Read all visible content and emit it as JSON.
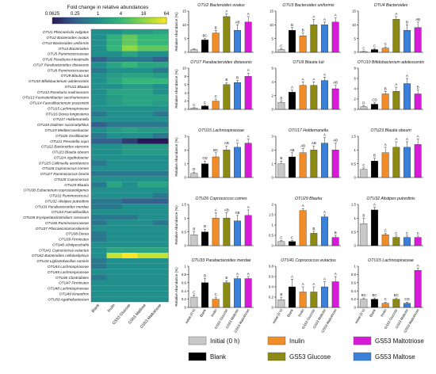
{
  "heatmap": {
    "title": "Fold change in relative abundances",
    "scale_ticks": [
      "0.0625",
      "0.25",
      "1",
      "4",
      "16",
      "64"
    ],
    "scale_colors": [
      "#2a1856",
      "#33608d",
      "#21908c",
      "#35b779",
      "#8fd744",
      "#fde725"
    ],
    "columns": [
      "Blank",
      "Inulin",
      "GS53 Glucose",
      "GS53 Maltose",
      "GS53 Maltotriose"
    ],
    "rows": [
      "OTU1 Phocaeicola vulgatus",
      "OTU2 Bacteroides ovatus",
      "OTU3 Bacteroides uniformis",
      "OTU4 Bacteroides",
      "OTU5 Ruminococcaceae",
      "OTU6 Roseburia intestinalis",
      "OTU7 Parabacteroides distasonis",
      "OTU8 Ruminococcaceae",
      "OTU9 Blautia luti",
      "OTU10 Bifidobacterium adolescentis",
      "OTU11 Blautia",
      "OTU12 Roseburia inulinivorans",
      "OTU13 Fusicatenibacter saccharivorans",
      "OTU14 Faecalibacterium prausnitzii",
      "OTU15 Lachnospiraceae",
      "OTU16 Dorea longicatena",
      "OTU17 Holdemanella",
      "OTU18 Dialister succinatiphilus",
      "OTU19 Mediterraneibacter",
      "OTU20 Oscillibacter",
      "OTU21 Prevotella copri",
      "OTU22 Bacteroides stercoris",
      "OTU23 Blautia obeum",
      "OTU24 Agathobacter",
      "OTU25 Collinsella aerofaciens",
      "OTU26 Coprococcus comes",
      "OTU27 Ruminococcus bromii",
      "OTU28 Coprococcus",
      "OTU29 Blautia",
      "OTU30 Eubacterium coprostanoligenes",
      "OTU31 Ruminococcus2",
      "OTU32 Alistipes putredinis",
      "OTU33 Parabacteroides merdae",
      "OTU34 Faecalibacillus",
      "OTU35 Erysipelatoclostridium ramosum",
      "OTU36 Ruminococcaceae",
      "OTU37 Phocaeicolamassiliensis",
      "OTU38 Dorea",
      "OTU39 Firmicutes",
      "OTU40 Alistipesshahii",
      "OTU41 Coprococcus eutactus",
      "OTU42 Bacteroides cellulosilyticus",
      "OTU43 Ligilactobacillus ruminis",
      "OTU44 Lachnospiraceae",
      "OTU45 Lachnospiraceae",
      "OTU46 Clostridiales",
      "OTU47 Firmicutes",
      "OTU48 Lachnospiraceae",
      "OTU49 Kineothrix",
      "OTU50 Agathobacterium"
    ],
    "values": [
      [
        1,
        1,
        1.5,
        1.5,
        2
      ],
      [
        1,
        3,
        8,
        4,
        4
      ],
      [
        1,
        3,
        8,
        4,
        4
      ],
      [
        1,
        4,
        16,
        8,
        8
      ],
      [
        1,
        1,
        2,
        1,
        1
      ],
      [
        0.25,
        0.5,
        0.5,
        0.5,
        0.25
      ],
      [
        1,
        2,
        4,
        2,
        2
      ],
      [
        0.5,
        1,
        1,
        1,
        0.5
      ],
      [
        1,
        1.5,
        2,
        2,
        1.5
      ],
      [
        1,
        2,
        4,
        4,
        4
      ],
      [
        1,
        1,
        1.5,
        1.5,
        1
      ],
      [
        1,
        2,
        2,
        2,
        1
      ],
      [
        1,
        1.5,
        2,
        2,
        2
      ],
      [
        1,
        1.5,
        2,
        2,
        1.5
      ],
      [
        1,
        1,
        1,
        1,
        1
      ],
      [
        0.5,
        1,
        1,
        1,
        0.5
      ],
      [
        1,
        1,
        1,
        1,
        1
      ],
      [
        0.25,
        0.5,
        0.5,
        0.5,
        0.5
      ],
      [
        1,
        1.5,
        2,
        1.5,
        1.5
      ],
      [
        0.5,
        1,
        1,
        1,
        0.5
      ],
      [
        0.25,
        0.25,
        0.125,
        0.0625,
        0.0625
      ],
      [
        1,
        1,
        1.5,
        1.5,
        1.5
      ],
      [
        1,
        1,
        1.5,
        1.5,
        1.5
      ],
      [
        1,
        1,
        1,
        1,
        1
      ],
      [
        0.5,
        1,
        1,
        1,
        1
      ],
      [
        1,
        1,
        1,
        1,
        1
      ],
      [
        0.5,
        0.5,
        0.5,
        0.5,
        0.5
      ],
      [
        1,
        1,
        1,
        1,
        1
      ],
      [
        0.5,
        2,
        1,
        2,
        2
      ],
      [
        1,
        1,
        1,
        1,
        1
      ],
      [
        1,
        1,
        1,
        1,
        0.5
      ],
      [
        0.5,
        0.5,
        0.25,
        0.25,
        0.25
      ],
      [
        0.5,
        0.5,
        1,
        1,
        1
      ],
      [
        1,
        1,
        1,
        1,
        1
      ],
      [
        0.5,
        0.5,
        0.5,
        1,
        1
      ],
      [
        0.5,
        1,
        1,
        1,
        0.5
      ],
      [
        1,
        1,
        1,
        1,
        1
      ],
      [
        0.5,
        1,
        1,
        1,
        1
      ],
      [
        0.5,
        1,
        1,
        1,
        1
      ],
      [
        1,
        1,
        1,
        1,
        1
      ],
      [
        1,
        2,
        2,
        2,
        2
      ],
      [
        1,
        32,
        64,
        32,
        32
      ],
      [
        0.5,
        1,
        1,
        1,
        1
      ],
      [
        0.5,
        1,
        1,
        1,
        1
      ],
      [
        1,
        1,
        1,
        1,
        1
      ],
      [
        0.5,
        1,
        1,
        1,
        1
      ],
      [
        1,
        1,
        1,
        1,
        1
      ],
      [
        1,
        1,
        1,
        1,
        1
      ],
      [
        1,
        1,
        1,
        1,
        1
      ],
      [
        1,
        1,
        1,
        1,
        1
      ]
    ]
  },
  "chart_data": [
    {
      "type": "bar",
      "title": "OTU2 Bacteroides ovatus",
      "ylabel": "Relative Abundance (%)",
      "ylim": [
        0,
        15
      ],
      "yticks": [
        0,
        5,
        10,
        15
      ],
      "categories": [
        "Initial (0 h)",
        "Blank",
        "Inulin",
        "GS53 Glucose",
        "GS53 Maltose",
        "GS53 Maltotriose"
      ],
      "values": [
        1,
        4.5,
        7,
        13,
        8,
        11
      ],
      "errors": [
        0.3,
        0.5,
        1,
        1,
        2,
        2
      ],
      "labels": [
        "",
        "BC",
        "B",
        "A",
        "AB",
        "A"
      ]
    },
    {
      "type": "bar",
      "title": "OTU3 Bacteroides uniformis",
      "ylabel": "",
      "ylim": [
        0,
        15
      ],
      "yticks": [
        0,
        5,
        10,
        15
      ],
      "categories": [
        "Initial (0 h)",
        "Blank",
        "Inulin",
        "GS53 Glucose",
        "GS53 Maltose",
        "GS53 Maltotriose"
      ],
      "values": [
        1,
        8,
        6,
        10,
        10,
        11
      ],
      "errors": [
        0.3,
        1,
        1,
        2,
        1,
        1.5
      ],
      "labels": [
        "C",
        "B",
        "B",
        "A",
        "A",
        "A"
      ]
    },
    {
      "type": "bar",
      "title": "OTU4 Bacteroides",
      "ylabel": "",
      "ylim": [
        0,
        15
      ],
      "yticks": [
        0,
        5,
        10,
        15
      ],
      "categories": [
        "Initial (0 h)",
        "Blank",
        "Inulin",
        "GS53 Glucose",
        "GS53 Maltose",
        "GS53 Maltotriose"
      ],
      "values": [
        0.3,
        1,
        1.5,
        12,
        8,
        9
      ],
      "errors": [
        0.1,
        0.3,
        0.5,
        1,
        2,
        2
      ],
      "labels": [
        "C",
        "C",
        "C",
        "A",
        "B",
        "AB"
      ]
    },
    {
      "type": "bar",
      "title": "OTU7 Parabacteroides distasonis",
      "ylabel": "Relative Abundance (%)",
      "ylim": [
        0,
        10
      ],
      "yticks": [
        0,
        2,
        4,
        6,
        8,
        10
      ],
      "categories": [
        "Initial (0 h)",
        "Blank",
        "Inulin",
        "GS53 Glucose",
        "GS53 Maltose",
        "GS53 Maltotriose"
      ],
      "values": [
        0.3,
        0.8,
        2,
        6,
        6.5,
        8
      ],
      "errors": [
        0.1,
        0.2,
        0.5,
        0.5,
        0.5,
        0.8
      ],
      "labels": [
        "C",
        "C",
        "C",
        "B",
        "B",
        "A"
      ]
    },
    {
      "type": "bar",
      "title": "OTU9 Blautia luti",
      "ylabel": "",
      "ylim": [
        0,
        6
      ],
      "yticks": [
        0,
        2,
        4,
        6
      ],
      "categories": [
        "Initial (0 h)",
        "Blank",
        "Inulin",
        "GS53 Glucose",
        "GS53 Maltose",
        "GS53 Maltotriose"
      ],
      "values": [
        1,
        2.5,
        3.5,
        3.5,
        4.2,
        3
      ],
      "errors": [
        0.2,
        0.3,
        0.5,
        0.5,
        0.5,
        0.5
      ],
      "labels": [
        "B",
        "A",
        "A",
        "A",
        "A",
        "AB"
      ]
    },
    {
      "type": "bar",
      "title": "OTU10 Bifidobacterium adolescentis",
      "ylabel": "",
      "ylim": [
        0,
        8
      ],
      "yticks": [
        0,
        2,
        4,
        6,
        8
      ],
      "categories": [
        "Initial (0 h)",
        "Blank",
        "Inulin",
        "GS53 Glucose",
        "GS53 Maltose",
        "GS53 Maltotriose"
      ],
      "values": [
        0.5,
        1,
        3,
        3.5,
        5,
        3
      ],
      "errors": [
        0.2,
        0.3,
        0.5,
        0.8,
        1,
        0.8
      ],
      "labels": [
        "D",
        "CD",
        "B",
        "A",
        "A",
        "B"
      ]
    },
    {
      "type": "bar",
      "title": "OTU15 Lachnospiraceae",
      "ylabel": "Relative Abundance (%)",
      "ylim": [
        0,
        3
      ],
      "yticks": [
        0,
        1,
        2,
        3
      ],
      "categories": [
        "Initial (0 h)",
        "Blank",
        "Inulin",
        "GS53 Glucose",
        "GS53 Maltose",
        "GS53 Maltotriose"
      ],
      "values": [
        0.3,
        1,
        1.5,
        2,
        2.2,
        2.5
      ],
      "errors": [
        0.1,
        0.2,
        0.3,
        0.3,
        0.3,
        0.3
      ],
      "labels": [
        "D",
        "CD",
        "BC",
        "AB",
        "A",
        "A"
      ]
    },
    {
      "type": "bar",
      "title": "OTU17 Holdemanella",
      "ylabel": "",
      "ylim": [
        0,
        3
      ],
      "yticks": [
        0,
        1,
        2,
        3
      ],
      "categories": [
        "Initial (0 h)",
        "Blank",
        "Inulin",
        "GS53 Glucose",
        "GS53 Maltose",
        "GS53 Maltotriose"
      ],
      "values": [
        1,
        1.5,
        1.8,
        2,
        2.5,
        2
      ],
      "errors": [
        0.2,
        0.3,
        0.3,
        0.3,
        0.4,
        0.5
      ],
      "labels": [
        "B",
        "AB",
        "AB",
        "AB",
        "A",
        "AB"
      ]
    },
    {
      "type": "bar",
      "title": "OTU23 Blautia obeum",
      "ylabel": "",
      "ylim": [
        0,
        1.5
      ],
      "yticks": [
        0,
        0.5,
        1,
        1.5
      ],
      "categories": [
        "Initial (0 h)",
        "Blank",
        "Inulin",
        "GS53 Glucose",
        "GS53 Maltose",
        "GS53 Maltotriose"
      ],
      "values": [
        0.3,
        0.6,
        0.9,
        1.1,
        1.1,
        1.2
      ],
      "errors": [
        0.05,
        0.1,
        0.2,
        0.2,
        0.2,
        0.2
      ],
      "labels": [
        "C",
        "B",
        "A",
        "A",
        "A",
        "A"
      ]
    },
    {
      "type": "bar",
      "title": "OTU26 Coprococcus comes",
      "ylabel": "Relative Abundance (%)",
      "ylim": [
        0,
        1.5
      ],
      "yticks": [
        0,
        0.5,
        1,
        1.5
      ],
      "categories": [
        "Initial (0 h)",
        "Blank",
        "Inulin",
        "GS53 Glucose",
        "GS53 Maltose",
        "GS53 Maltotriose"
      ],
      "values": [
        0.4,
        0.5,
        1,
        1,
        0.9,
        1.1
      ],
      "errors": [
        0.1,
        0.1,
        0.2,
        0.2,
        0.2,
        0.2
      ],
      "labels": [
        "B",
        "B",
        "A",
        "AB",
        "AB",
        "A"
      ]
    },
    {
      "type": "bar",
      "title": "OTU29 Blautia",
      "ylabel": "",
      "ylim": [
        0,
        2
      ],
      "yticks": [
        0,
        0.5,
        1,
        1.5,
        2
      ],
      "categories": [
        "Initial (0 h)",
        "Blank",
        "Inulin",
        "GS53 Glucose",
        "GS53 Maltose",
        "GS53 Maltotriose"
      ],
      "values": [
        0.2,
        0.2,
        1.7,
        0.6,
        1.4,
        0.4
      ],
      "errors": [
        0.05,
        0.05,
        0.1,
        0.1,
        0.1,
        0.1
      ],
      "labels": [
        "C",
        "C",
        "A",
        "B",
        "A",
        "B"
      ]
    },
    {
      "type": "bar",
      "title": "OTU32 Alistipes putredinis",
      "ylabel": "",
      "ylim": [
        0,
        1.5
      ],
      "yticks": [
        0,
        0.5,
        1,
        1.5
      ],
      "categories": [
        "Initial (0 h)",
        "Blank",
        "Inulin",
        "GS53 Glucose",
        "GS53 Maltose",
        "GS53 Maltotriose"
      ],
      "values": [
        0.8,
        1.3,
        0.4,
        0.3,
        0.3,
        0.3
      ],
      "errors": [
        0.2,
        0.1,
        0.05,
        0.05,
        0.05,
        0.05
      ],
      "labels": [
        "B",
        "A",
        "C",
        "C",
        "C",
        "C"
      ]
    },
    {
      "type": "bar",
      "title": "OTU33 Parabacteroides merdae",
      "ylabel": "Relative Abundance (%)",
      "ylim": [
        0,
        1
      ],
      "yticks": [
        0,
        0.2,
        0.4,
        0.6,
        0.8,
        1
      ],
      "categories": [
        "Initial (0 h)",
        "Blank",
        "Inulin",
        "GS53 Glucose",
        "GS53 Maltose",
        "GS53 Maltotriose"
      ],
      "values": [
        0.25,
        0.6,
        0.2,
        0.6,
        0.7,
        0.7
      ],
      "errors": [
        0.05,
        0.1,
        0.05,
        0.05,
        0.05,
        0.05
      ],
      "labels": [
        "C",
        "B",
        "C",
        "B",
        "A",
        "A"
      ]
    },
    {
      "type": "bar",
      "title": "OTU41 Coprococcus eutactus",
      "ylabel": "",
      "ylim": [
        0,
        0.8
      ],
      "yticks": [
        0,
        0.2,
        0.4,
        0.6,
        0.8
      ],
      "categories": [
        "Initial (0 h)",
        "Blank",
        "Inulin",
        "GS53 Glucose",
        "GS53 Maltose",
        "GS53 Maltotriose"
      ],
      "values": [
        0.15,
        0.4,
        0.3,
        0.3,
        0.4,
        0.5
      ],
      "errors": [
        0.05,
        0.15,
        0.1,
        0.1,
        0.1,
        0.1
      ],
      "labels": [
        "B",
        "A",
        "A",
        "A",
        "A",
        "A"
      ]
    },
    {
      "type": "bar",
      "title": "OTU15 Lachnospiraceae",
      "ylabel": "",
      "ylim": [
        0,
        1
      ],
      "yticks": [
        0,
        0.2,
        0.4,
        0.6,
        0.8,
        1
      ],
      "categories": [
        "Initial (0 h)",
        "Blank",
        "Inulin",
        "GS53 Glucose",
        "GS53 Maltose",
        "GS53 Maltotriose"
      ],
      "values": [
        0.2,
        0.2,
        0.1,
        0.2,
        0.1,
        0.9
      ],
      "errors": [
        0.03,
        0.03,
        0.03,
        0.03,
        0.03,
        0.05
      ],
      "labels": [
        "BC",
        "BC",
        "C",
        "BC",
        "CD",
        "A"
      ]
    }
  ],
  "legend": {
    "items": [
      {
        "label": "Initial (0 h)",
        "color": "#c8c8c8"
      },
      {
        "label": "Inulin",
        "color": "#f28c28"
      },
      {
        "label": "GS53 Maltotriose",
        "color": "#d81bd8"
      },
      {
        "label": "Blank",
        "color": "#000000"
      },
      {
        "label": "GS53 Glucose",
        "color": "#8a8a14"
      },
      {
        "label": "GS53 Maltose",
        "color": "#3a7fd8"
      }
    ]
  }
}
